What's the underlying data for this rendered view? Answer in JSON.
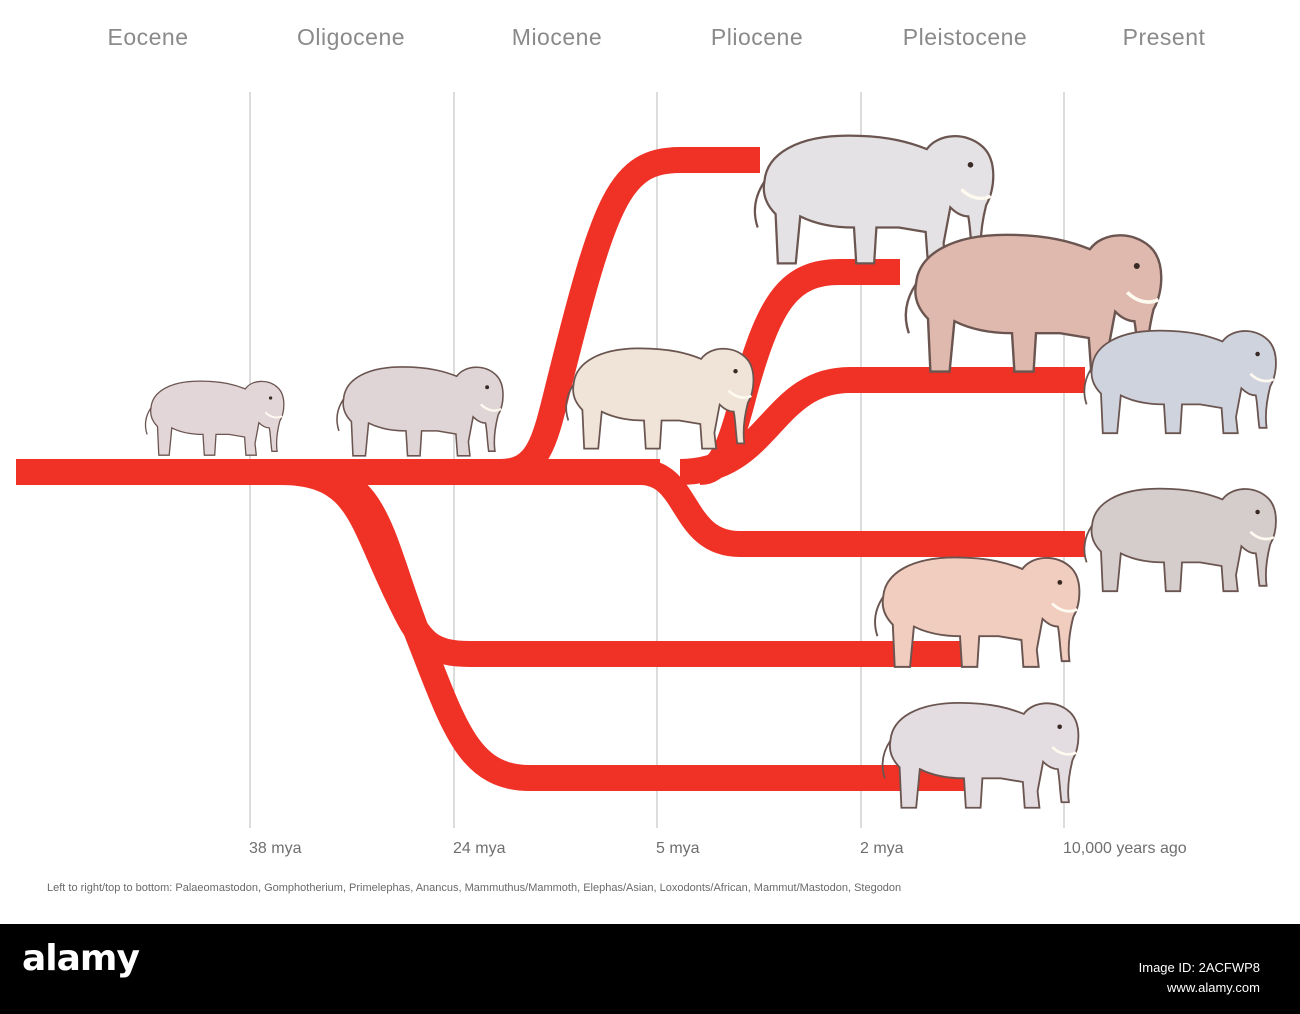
{
  "epochs": {
    "eocene": "Eocene",
    "oligocene": "Oligocene",
    "miocene": "Miocene",
    "pliocene": "Pliocene",
    "pleistocene": "Pleistocene",
    "present": "Present"
  },
  "time_ticks": {
    "t38": "38 mya",
    "t24": "24 mya",
    "t5": "5 mya",
    "t2": "2 mya",
    "t10k": "10,000 years ago"
  },
  "caption": "Left to right/top to bottom: Palaeomastodon, Gomphotherium, Primelephas, Anancus, Mammuthus/Mammoth, Elephas/Asian, Loxodonts/African, Mammut/Mastodon, Stegodon",
  "colors": {
    "branch": "#f03226",
    "grid": "#b8b8b8",
    "text": "#8a8a8a",
    "footer": "#000000"
  },
  "footer": {
    "logo": "alamy",
    "image_id": "Image ID: 2ACFWP8",
    "url": "www.alamy.com"
  }
}
